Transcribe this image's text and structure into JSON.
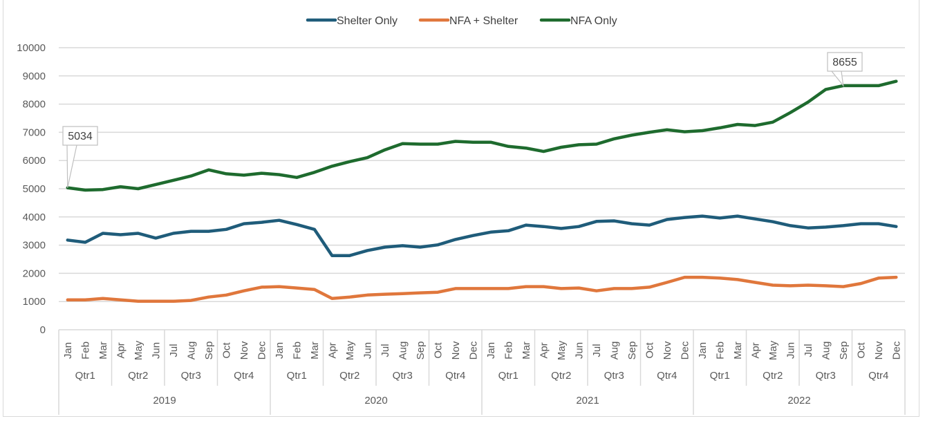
{
  "chart_data": {
    "type": "line",
    "title": "",
    "xlabel": "",
    "ylabel": "",
    "ylim": [
      0,
      10000
    ],
    "yticks": [
      0,
      1000,
      2000,
      3000,
      4000,
      5000,
      6000,
      7000,
      8000,
      9000,
      10000
    ],
    "grid": true,
    "legend_position": "top-center",
    "x_levels": {
      "months": [
        "Jan",
        "Feb",
        "Mar",
        "Apr",
        "May",
        "Jun",
        "Jul",
        "Aug",
        "Sep",
        "Oct",
        "Nov",
        "Dec"
      ],
      "quarters": [
        "Qtr1",
        "Qtr2",
        "Qtr3",
        "Qtr4"
      ],
      "years": [
        "2019",
        "2020",
        "2021",
        "2022"
      ]
    },
    "series": [
      {
        "name": "Shelter Only",
        "color": "#1f5c7a",
        "values": [
          3180,
          3100,
          3420,
          3370,
          3420,
          3250,
          3420,
          3490,
          3490,
          3560,
          3760,
          3810,
          3880,
          3730,
          3560,
          2630,
          2630,
          2810,
          2930,
          2980,
          2930,
          3010,
          3200,
          3340,
          3460,
          3510,
          3710,
          3660,
          3590,
          3660,
          3840,
          3860,
          3760,
          3710,
          3910,
          3980,
          4030,
          3960,
          4030,
          3930,
          3830,
          3690,
          3610,
          3640,
          3690,
          3760,
          3760,
          3660
        ]
      },
      {
        "name": "NFA + Shelter",
        "color": "#e0773c",
        "values": [
          1060,
          1060,
          1110,
          1060,
          1010,
          1010,
          1010,
          1040,
          1160,
          1230,
          1380,
          1510,
          1530,
          1480,
          1430,
          1110,
          1160,
          1230,
          1260,
          1280,
          1310,
          1330,
          1460,
          1460,
          1460,
          1460,
          1530,
          1530,
          1460,
          1480,
          1380,
          1460,
          1460,
          1510,
          1680,
          1860,
          1860,
          1830,
          1780,
          1680,
          1580,
          1560,
          1580,
          1560,
          1530,
          1640,
          1830,
          1860
        ]
      },
      {
        "name": "NFA Only",
        "color": "#1e6b2e",
        "values": [
          5034,
          4950,
          4970,
          5070,
          5000,
          5150,
          5300,
          5450,
          5670,
          5530,
          5480,
          5550,
          5500,
          5400,
          5580,
          5800,
          5960,
          6100,
          6380,
          6600,
          6580,
          6580,
          6680,
          6650,
          6650,
          6500,
          6440,
          6320,
          6470,
          6560,
          6580,
          6770,
          6900,
          7000,
          7090,
          7020,
          7060,
          7160,
          7280,
          7240,
          7360,
          7700,
          8070,
          8520,
          8655,
          8655,
          8655,
          8810
        ]
      }
    ],
    "annotations": [
      {
        "series": "NFA Only",
        "index": 0,
        "text": "5034"
      },
      {
        "series": "NFA Only",
        "index": 44,
        "text": "8655"
      }
    ]
  }
}
